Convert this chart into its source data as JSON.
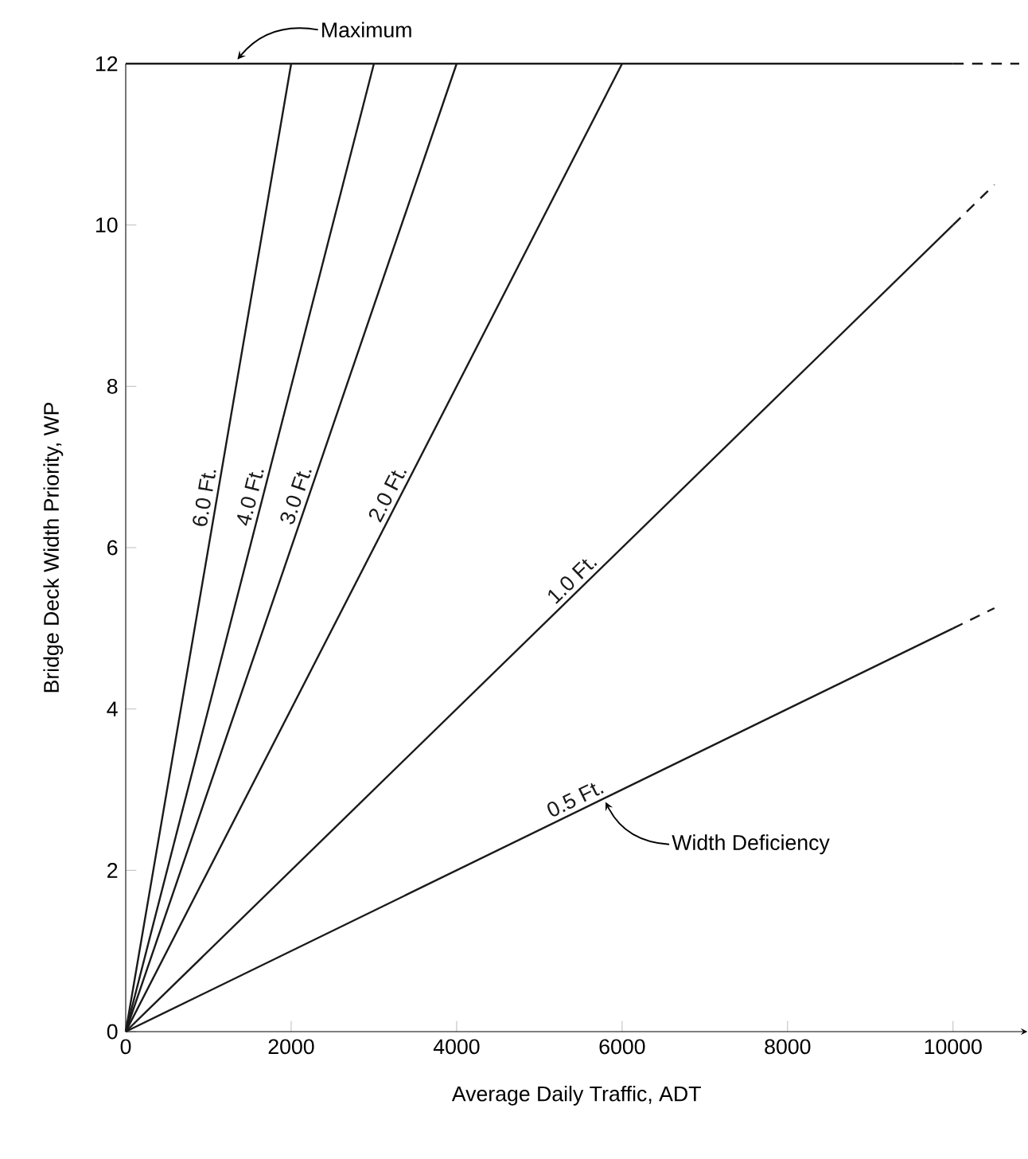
{
  "chart_data": {
    "type": "line",
    "xlabel": "Average Daily Traffic, ADT",
    "ylabel": "Bridge Deck Width Priority, WP",
    "xlim": [
      0,
      10900
    ],
    "ylim": [
      0,
      12
    ],
    "xticks": [
      0,
      2000,
      4000,
      6000,
      8000,
      10000
    ],
    "yticks": [
      0,
      2,
      4,
      6,
      8,
      10,
      12
    ],
    "grid": false,
    "legend": false,
    "series": [
      {
        "name": "6.0 Ft.",
        "color": "#1a1a1a",
        "line_style": "solid",
        "x": [
          0,
          2000
        ],
        "values": [
          0,
          12
        ]
      },
      {
        "name": "4.0 Ft.",
        "color": "#1a1a1a",
        "line_style": "solid",
        "x": [
          0,
          3000
        ],
        "values": [
          0,
          12
        ]
      },
      {
        "name": "3.0 Ft.",
        "color": "#1a1a1a",
        "line_style": "solid",
        "x": [
          0,
          4000
        ],
        "values": [
          0,
          12
        ]
      },
      {
        "name": "2.0 Ft.",
        "color": "#1a1a1a",
        "line_style": "solid",
        "x": [
          0,
          6000
        ],
        "values": [
          0,
          12
        ]
      },
      {
        "name": "1.0 Ft.",
        "color": "#1a1a1a",
        "line_style": "solid",
        "x": [
          0,
          10000
        ],
        "values": [
          0,
          10
        ]
      },
      {
        "color": "#1a1a1a",
        "line_style": "dashed",
        "x": [
          10000,
          10500
        ],
        "values": [
          10,
          10.5
        ]
      },
      {
        "name": "0.5 Ft.",
        "color": "#1a1a1a",
        "line_style": "solid",
        "x": [
          0,
          10000
        ],
        "values": [
          0,
          5
        ]
      },
      {
        "color": "#1a1a1a",
        "line_style": "dashed",
        "x": [
          10000,
          10500
        ],
        "values": [
          5,
          5.25
        ]
      },
      {
        "color": "#1a1a1a",
        "line_style": "solid",
        "x": [
          0,
          10000
        ],
        "values": [
          12,
          12
        ]
      },
      {
        "color": "#1a1a1a",
        "line_style": "dashed",
        "x": [
          10000,
          10800
        ],
        "values": [
          12,
          12
        ]
      }
    ],
    "annotations": [
      {
        "text": "Maximum",
        "x": 1350,
        "y": 12
      },
      {
        "text": "Width Deficiency",
        "x": 5800,
        "y": 2.9
      }
    ]
  }
}
